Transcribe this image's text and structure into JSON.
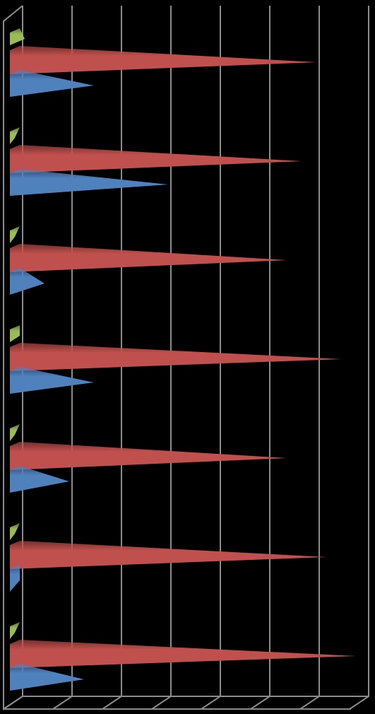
{
  "chart_data": {
    "type": "bar",
    "orientation": "horizontal",
    "categories": [
      null,
      null,
      null,
      null,
      null,
      null,
      null
    ],
    "series": [
      {
        "color": "#9bbb59",
        "values": [
          0.3,
          0.1,
          0.1,
          0.2,
          0.1,
          0.1,
          0.1
        ]
      },
      {
        "color": "#c0504d",
        "values": [
          6.2,
          5.9,
          5.6,
          6.7,
          5.6,
          6.4,
          7.0
        ]
      },
      {
        "color": "#4f81bd",
        "values": [
          1.7,
          3.2,
          0.7,
          1.7,
          1.2,
          0.2,
          1.5
        ]
      }
    ],
    "xlim": [
      0,
      7
    ],
    "xticks": [
      0,
      1,
      2,
      3,
      4,
      5,
      6,
      7
    ],
    "grid": true
  }
}
